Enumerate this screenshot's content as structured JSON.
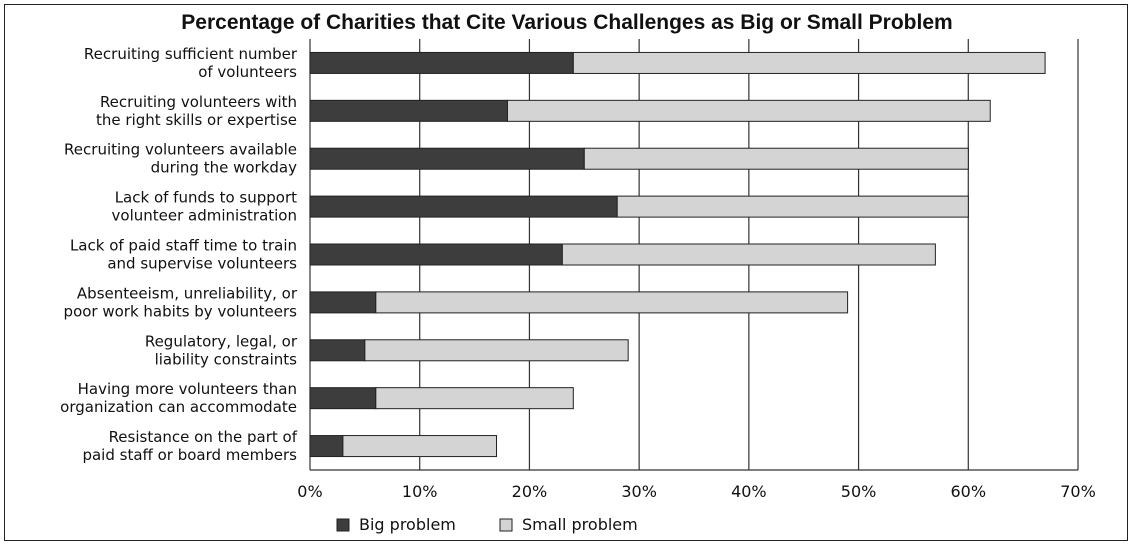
{
  "chart_data": {
    "type": "bar",
    "orientation": "horizontal",
    "stacked": true,
    "title": "Percentage of Charities that Cite Various Challenges as Big or Small Problem",
    "categories": [
      [
        "Recruiting sufficient number",
        "of volunteers"
      ],
      [
        "Recruiting volunteers with",
        "the right skills or expertise"
      ],
      [
        "Recruiting volunteers available",
        "during the workday"
      ],
      [
        "Lack of funds to support",
        "volunteer administration"
      ],
      [
        "Lack of paid staff time to train",
        "and supervise volunteers"
      ],
      [
        "Absenteeism, unreliability, or",
        "poor work habits by volunteers"
      ],
      [
        "Regulatory, legal, or",
        "liability constraints"
      ],
      [
        "Having more volunteers than",
        "organization can accommodate"
      ],
      [
        "Resistance on the part of",
        "paid staff or board members"
      ]
    ],
    "series": [
      {
        "name": "Big problem",
        "color": "#3d3d3d",
        "values": [
          24,
          18,
          25,
          28,
          23,
          6,
          5,
          6,
          3
        ]
      },
      {
        "name": "Small problem",
        "color": "#d4d4d4",
        "values": [
          43,
          44,
          35,
          32,
          34,
          43,
          24,
          18,
          14
        ]
      }
    ],
    "xlim": [
      0,
      70
    ],
    "xticks": [
      0,
      10,
      20,
      30,
      40,
      50,
      60,
      70
    ],
    "xtick_labels": [
      "0%",
      "10%",
      "20%",
      "30%",
      "40%",
      "50%",
      "60%",
      "70%"
    ],
    "grid": true,
    "legend_position": "bottom-left"
  }
}
